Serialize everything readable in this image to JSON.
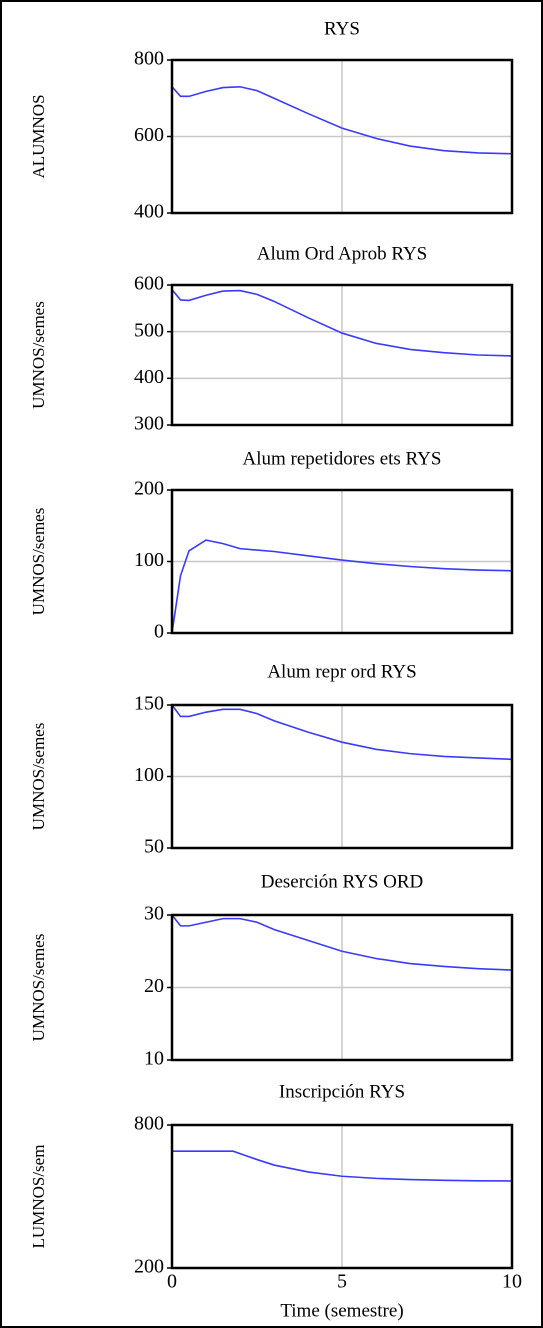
{
  "chart_data": [
    {
      "type": "line",
      "title": "RYS",
      "ylabel": "ALUMNOS",
      "xlim": [
        0,
        10
      ],
      "xticks": [
        0,
        5,
        10
      ],
      "ylim": [
        400,
        800
      ],
      "yticks": [
        400,
        600,
        800
      ],
      "grid": true,
      "x": [
        0,
        0.25,
        0.5,
        1,
        1.5,
        2,
        2.5,
        3,
        4,
        5,
        6,
        7,
        8,
        9,
        10
      ],
      "series": [
        {
          "color": "#3a3aff",
          "values": [
            730,
            705,
            705,
            718,
            728,
            730,
            720,
            700,
            660,
            622,
            595,
            575,
            563,
            557,
            555
          ]
        }
      ]
    },
    {
      "type": "line",
      "title": "Alum Ord Aprob RYS",
      "ylabel": "UMNOS/semes",
      "xlim": [
        0,
        10
      ],
      "xticks": [
        0,
        5,
        10
      ],
      "ylim": [
        300,
        600
      ],
      "yticks": [
        300,
        400,
        500,
        600
      ],
      "grid": true,
      "x": [
        0,
        0.25,
        0.5,
        1,
        1.5,
        2,
        2.5,
        3,
        4,
        5,
        6,
        7,
        8,
        9,
        10
      ],
      "series": [
        {
          "color": "#3a3aff",
          "values": [
            590,
            568,
            567,
            578,
            587,
            588,
            580,
            565,
            530,
            497,
            475,
            462,
            455,
            450,
            448
          ]
        }
      ]
    },
    {
      "type": "line",
      "title": "Alum repetidores ets RYS",
      "ylabel": "UMNOS/semes",
      "xlim": [
        0,
        10
      ],
      "xticks": [
        0,
        5,
        10
      ],
      "ylim": [
        0,
        200
      ],
      "yticks": [
        0,
        100,
        200
      ],
      "grid": true,
      "x": [
        0,
        0.25,
        0.5,
        1,
        1.5,
        2,
        2.5,
        3,
        4,
        5,
        6,
        7,
        8,
        9,
        10
      ],
      "series": [
        {
          "color": "#3a3aff",
          "values": [
            0,
            80,
            115,
            130,
            125,
            118,
            116,
            114,
            108,
            102,
            97,
            93,
            90,
            88,
            87
          ]
        }
      ]
    },
    {
      "type": "line",
      "title": "Alum repr ord RYS",
      "ylabel": "UMNOS/semes",
      "xlim": [
        0,
        10
      ],
      "xticks": [
        0,
        5,
        10
      ],
      "ylim": [
        50,
        150
      ],
      "yticks": [
        50,
        100,
        150
      ],
      "grid": true,
      "x": [
        0,
        0.25,
        0.5,
        1,
        1.5,
        2,
        2.5,
        3,
        4,
        5,
        6,
        7,
        8,
        9,
        10
      ],
      "series": [
        {
          "color": "#3a3aff",
          "values": [
            150,
            142,
            142,
            145,
            147,
            147,
            144,
            139,
            131,
            124,
            119,
            116,
            114,
            113,
            112
          ]
        }
      ]
    },
    {
      "type": "line",
      "title": "Deserción RYS ORD",
      "ylabel": "UMNOS/semes",
      "xlim": [
        0,
        10
      ],
      "xticks": [
        0,
        5,
        10
      ],
      "ylim": [
        10,
        30
      ],
      "yticks": [
        10,
        20,
        30
      ],
      "grid": true,
      "x": [
        0,
        0.25,
        0.5,
        1,
        1.5,
        2,
        2.5,
        3,
        4,
        5,
        6,
        7,
        8,
        9,
        10
      ],
      "series": [
        {
          "color": "#3a3aff",
          "values": [
            30,
            28.5,
            28.5,
            29,
            29.5,
            29.5,
            29,
            28,
            26.5,
            25,
            24,
            23.3,
            22.9,
            22.6,
            22.4
          ]
        }
      ]
    },
    {
      "type": "line",
      "title": "Inscripción RYS",
      "ylabel": "LUMNOS/sem",
      "xlabel": "Time (semestre)",
      "xlim": [
        0,
        10
      ],
      "xticks": [
        0,
        5,
        10
      ],
      "ylim": [
        200,
        800
      ],
      "yticks": [
        200,
        800
      ],
      "grid": true,
      "x": [
        0,
        0.25,
        0.5,
        1,
        1.5,
        1.8,
        2,
        2.5,
        3,
        4,
        5,
        6,
        7,
        8,
        9,
        10
      ],
      "series": [
        {
          "color": "#3a3aff",
          "values": [
            690,
            690,
            690,
            690,
            690,
            690,
            680,
            655,
            632,
            603,
            585,
            576,
            571,
            568,
            566,
            565
          ]
        }
      ]
    }
  ]
}
